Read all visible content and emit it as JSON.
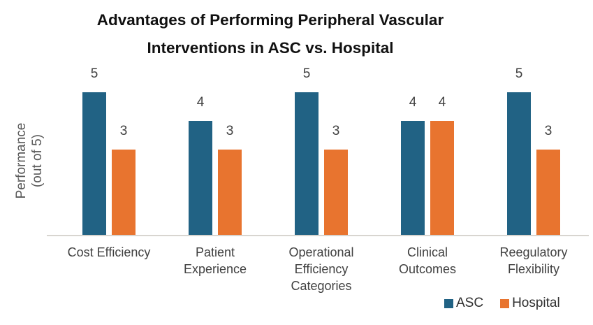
{
  "title": {
    "line1": "Advantages of Performing Peripheral Vascular",
    "line2": "Interventions in ASC vs. Hospital"
  },
  "y_axis": {
    "label_line1": "Performance",
    "label_line2": "(out of 5)"
  },
  "chart_data": {
    "type": "bar",
    "title": "Advantages of Performing Peripheral Vascular Interventions in ASC vs. Hospital",
    "ylabel": "Performance (out of 5)",
    "xlabel": "",
    "categories": [
      "Cost Efficiency",
      "Patient Experience",
      "Operational Efficiency Categories",
      "Clinical Outcomes",
      "Reegulatory Flexibility"
    ],
    "series": [
      {
        "name": "ASC",
        "color": "#216284",
        "values": [
          5,
          4,
          5,
          4,
          5
        ]
      },
      {
        "name": "Hospital",
        "color": "#E8742F",
        "values": [
          3,
          3,
          3,
          4,
          3
        ]
      }
    ],
    "ylim": [
      0,
      5
    ],
    "grid": false,
    "data_labels": true,
    "legend_position": "bottom-right",
    "colors": {
      "title": "#111111",
      "data_label": "#404040",
      "category_label": "#404040",
      "y_axis_label": "#595959",
      "axis_line": "#D8D5D0"
    }
  }
}
